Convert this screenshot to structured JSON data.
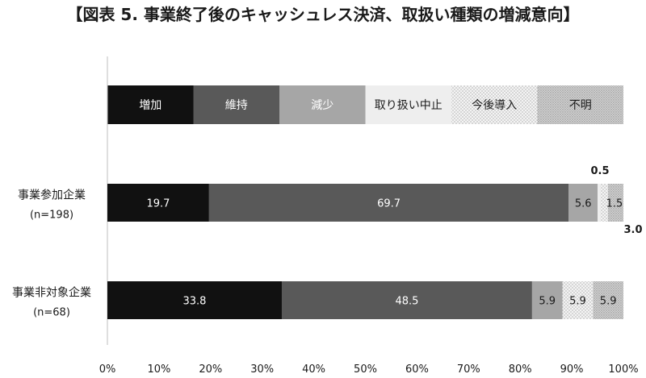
{
  "chart_data": {
    "type": "bar",
    "orientation": "horizontal",
    "stacked": true,
    "title": "【図表 5. 事業終了後のキャッシュレス決済、取扱い種類の増減意向】",
    "categories": [
      {
        "name": "事業参加企業",
        "n": "(n=198)"
      },
      {
        "name": "事業非対象企業",
        "n": "(n=68)"
      }
    ],
    "series": [
      {
        "name": "増加",
        "values": [
          19.7,
          33.8
        ],
        "color": "#111111",
        "pattern": "solid"
      },
      {
        "name": "維持",
        "values": [
          69.7,
          48.5
        ],
        "color": "#595959",
        "pattern": "solid"
      },
      {
        "name": "減少",
        "values": [
          5.6,
          5.9
        ],
        "color": "#a6a6a6",
        "pattern": "solid"
      },
      {
        "name": "取り扱い中止",
        "values": [
          0.5,
          0.0
        ],
        "color": "#eeeeee",
        "pattern": "solid"
      },
      {
        "name": "今後導入",
        "values": [
          1.5,
          5.9
        ],
        "color": "#f4f4f4",
        "pattern": "fine-dots"
      },
      {
        "name": "不明",
        "values": [
          3.0,
          5.9
        ],
        "color": "#d4d4d4",
        "pattern": "dense-dots"
      }
    ],
    "data_labels": [
      [
        "19.7",
        "69.7",
        "5.6",
        "0.5",
        "1.5",
        "3.0"
      ],
      [
        "33.8",
        "48.5",
        "5.9",
        "",
        "5.9",
        "5.9"
      ]
    ],
    "xlim": [
      0,
      100
    ],
    "x_ticks": [
      "0%",
      "10%",
      "20%",
      "30%",
      "40%",
      "50%",
      "60%",
      "70%",
      "80%",
      "90%",
      "100%"
    ],
    "legend_position": "top (as a stacked strip)",
    "grid": false
  }
}
